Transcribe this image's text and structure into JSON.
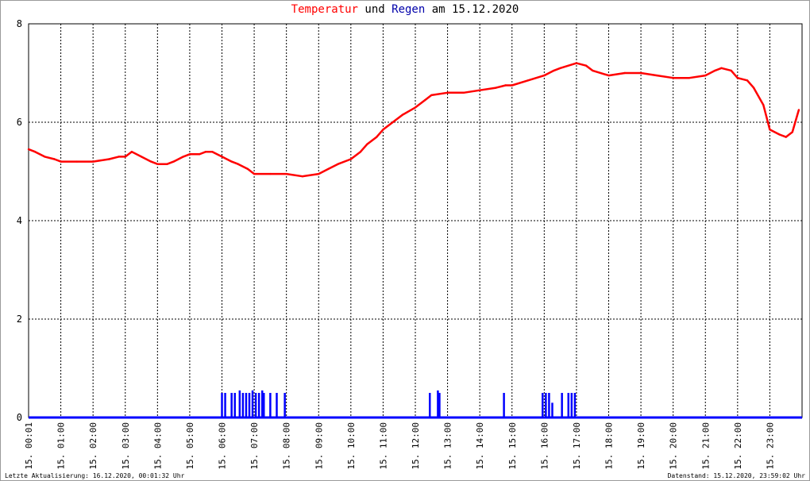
{
  "title": {
    "temp_word": "Temperatur",
    "und": "und",
    "rain_word": "Regen",
    "am": "am",
    "date": "15.12.2020"
  },
  "footer": {
    "left": "Letzte Aktualisierung: 16.12.2020, 00:01:32 Uhr",
    "right": "Datenstand: 15.12.2020, 23:59:02 Uhr"
  },
  "chart_data": {
    "type": "line",
    "title": "Temperatur und Regen am 15.12.2020",
    "ylim": [
      0,
      8
    ],
    "xlim": [
      0,
      24
    ],
    "yticks": [
      0,
      2,
      4,
      6,
      8
    ],
    "xticks": [
      "15. 00:01",
      "15. 01:00",
      "15. 02:00",
      "15. 03:00",
      "15. 04:00",
      "15. 05:00",
      "15. 06:00",
      "15. 07:00",
      "15. 08:00",
      "15. 09:00",
      "15. 10:00",
      "15. 11:00",
      "15. 12:00",
      "15. 13:00",
      "15. 14:00",
      "15. 15:00",
      "15. 16:00",
      "15. 17:00",
      "15. 18:00",
      "15. 19:00",
      "15. 20:00",
      "15. 21:00",
      "15. 22:00",
      "15. 23:00"
    ],
    "grid": true,
    "colors": {
      "temperature": "#ff0000",
      "rain": "#0000ff",
      "grid": "#000000"
    },
    "series": [
      {
        "key": "temperature",
        "x": [
          0,
          0.2,
          0.5,
          0.8,
          1.0,
          1.5,
          2.0,
          2.5,
          2.8,
          3.0,
          3.2,
          3.5,
          3.8,
          4.0,
          4.3,
          4.5,
          4.8,
          5.0,
          5.3,
          5.5,
          5.7,
          6.0,
          6.3,
          6.5,
          6.8,
          7.0,
          7.5,
          8.0,
          8.5,
          9.0,
          9.3,
          9.6,
          10.0,
          10.3,
          10.5,
          10.8,
          11.0,
          11.3,
          11.6,
          12.0,
          12.3,
          12.5,
          13.0,
          13.5,
          14.0,
          14.5,
          14.8,
          15.0,
          15.5,
          16.0,
          16.3,
          16.5,
          17.0,
          17.3,
          17.5,
          18.0,
          18.5,
          19.0,
          19.5,
          20.0,
          20.5,
          21.0,
          21.3,
          21.5,
          21.8,
          22.0,
          22.3,
          22.5,
          22.8,
          23.0,
          23.3,
          23.5,
          23.7,
          23.9
        ],
        "values": [
          5.45,
          5.4,
          5.3,
          5.25,
          5.2,
          5.2,
          5.2,
          5.25,
          5.3,
          5.3,
          5.4,
          5.3,
          5.2,
          5.15,
          5.15,
          5.2,
          5.3,
          5.35,
          5.35,
          5.4,
          5.4,
          5.3,
          5.2,
          5.15,
          5.05,
          4.95,
          4.95,
          4.95,
          4.9,
          4.95,
          5.05,
          5.15,
          5.25,
          5.4,
          5.55,
          5.7,
          5.85,
          6.0,
          6.15,
          6.3,
          6.45,
          6.55,
          6.6,
          6.6,
          6.65,
          6.7,
          6.75,
          6.75,
          6.85,
          6.95,
          7.05,
          7.1,
          7.2,
          7.15,
          7.05,
          6.95,
          7.0,
          7.0,
          6.95,
          6.9,
          6.9,
          6.95,
          7.05,
          7.1,
          7.05,
          6.9,
          6.85,
          6.7,
          6.35,
          5.85,
          5.75,
          5.7,
          5.8,
          6.25
        ]
      },
      {
        "key": "rain",
        "x": [
          6.0,
          6.1,
          6.3,
          6.4,
          6.55,
          6.65,
          6.75,
          6.85,
          6.95,
          7.05,
          7.15,
          7.25,
          7.3,
          7.5,
          7.7,
          7.95,
          12.45,
          12.7,
          12.75,
          14.75,
          15.95,
          16.05,
          16.15,
          16.25,
          16.55,
          16.75,
          16.85,
          16.95
        ],
        "values": [
          0.5,
          0.5,
          0.5,
          0.5,
          0.55,
          0.5,
          0.5,
          0.5,
          0.55,
          0.5,
          0.5,
          0.55,
          0.5,
          0.5,
          0.5,
          0.5,
          0.5,
          0.55,
          0.5,
          0.5,
          0.5,
          0.5,
          0.5,
          0.3,
          0.5,
          0.5,
          0.5,
          0.5
        ]
      }
    ]
  }
}
